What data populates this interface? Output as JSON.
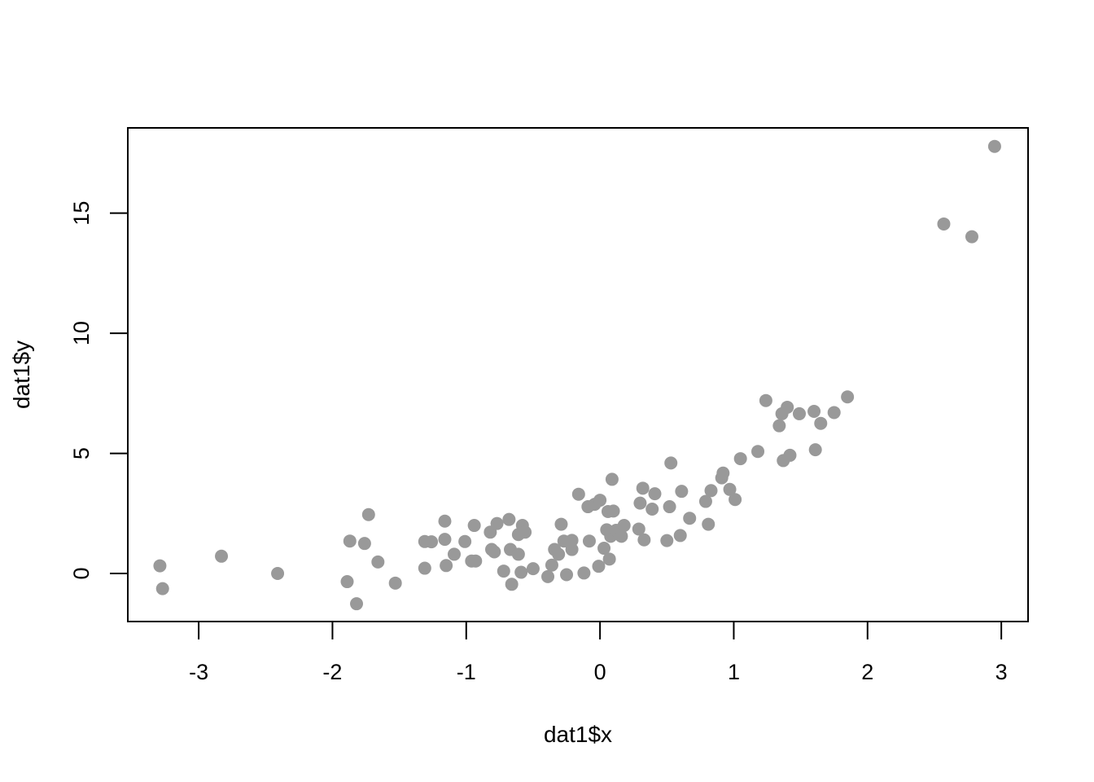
{
  "chart_data": {
    "type": "scatter",
    "title": "",
    "xlabel": "dat1$x",
    "ylabel": "dat1$y",
    "xlim": [
      -3.53,
      3.2
    ],
    "ylim": [
      -2.0,
      18.55
    ],
    "xticks": [
      -3,
      -2,
      -1,
      0,
      1,
      2,
      3
    ],
    "yticks": [
      0,
      5,
      10,
      15
    ],
    "xtick_labels": [
      "-3",
      "-2",
      "-1",
      "0",
      "1",
      "2",
      "3"
    ],
    "ytick_labels": [
      "0",
      "5",
      "10",
      "15"
    ],
    "grid": false,
    "point_color": "#999999",
    "x": [
      -3.29,
      -3.27,
      -2.83,
      -2.41,
      -1.89,
      -1.87,
      -1.82,
      -1.76,
      -1.73,
      -1.66,
      -1.53,
      -1.31,
      -1.31,
      -1.26,
      -1.16,
      -1.16,
      -1.15,
      -1.09,
      -1.01,
      -0.96,
      -0.94,
      -0.93,
      -0.82,
      -0.81,
      -0.79,
      -0.77,
      -0.72,
      -0.68,
      -0.67,
      -0.66,
      -0.61,
      -0.61,
      -0.59,
      -0.58,
      -0.56,
      -0.5,
      -0.39,
      -0.36,
      -0.34,
      -0.31,
      -0.29,
      -0.27,
      -0.25,
      -0.21,
      -0.21,
      -0.16,
      -0.12,
      -0.09,
      -0.08,
      -0.04,
      -0.01,
      0.0,
      0.03,
      0.05,
      0.06,
      0.07,
      0.08,
      0.09,
      0.1,
      0.12,
      0.16,
      0.18,
      0.29,
      0.3,
      0.32,
      0.33,
      0.39,
      0.41,
      0.5,
      0.52,
      0.53,
      0.6,
      0.61,
      0.67,
      0.79,
      0.81,
      0.83,
      0.91,
      0.92,
      0.97,
      1.01,
      1.05,
      1.18,
      1.24,
      1.34,
      1.36,
      1.37,
      1.4,
      1.42,
      1.49,
      1.6,
      1.61,
      1.65,
      1.75,
      1.85,
      2.57,
      2.78,
      2.95
    ],
    "y": [
      0.32,
      -0.63,
      0.72,
      0.0,
      -0.34,
      1.35,
      -1.26,
      1.25,
      2.45,
      0.48,
      -0.4,
      1.33,
      0.22,
      1.32,
      2.18,
      1.42,
      0.33,
      0.8,
      1.33,
      0.52,
      2.0,
      0.52,
      1.72,
      1.0,
      0.9,
      2.08,
      0.1,
      2.25,
      1.0,
      -0.45,
      1.62,
      0.8,
      0.05,
      2.0,
      1.72,
      0.2,
      -0.13,
      0.35,
      1.0,
      0.8,
      2.05,
      1.35,
      -0.05,
      1.38,
      1.0,
      3.3,
      0.02,
      2.78,
      1.35,
      2.88,
      0.3,
      3.05,
      1.05,
      1.82,
      2.58,
      0.6,
      1.55,
      3.92,
      2.6,
      1.8,
      1.55,
      2.0,
      1.85,
      2.93,
      3.55,
      1.4,
      2.68,
      3.32,
      1.37,
      2.78,
      4.6,
      1.58,
      3.42,
      2.3,
      3.0,
      2.05,
      3.45,
      3.98,
      4.18,
      3.5,
      3.08,
      4.78,
      5.08,
      7.2,
      6.15,
      6.65,
      4.7,
      6.92,
      4.92,
      6.65,
      6.75,
      5.15,
      6.25,
      6.7,
      7.35,
      14.55,
      14.02,
      17.78
    ]
  }
}
